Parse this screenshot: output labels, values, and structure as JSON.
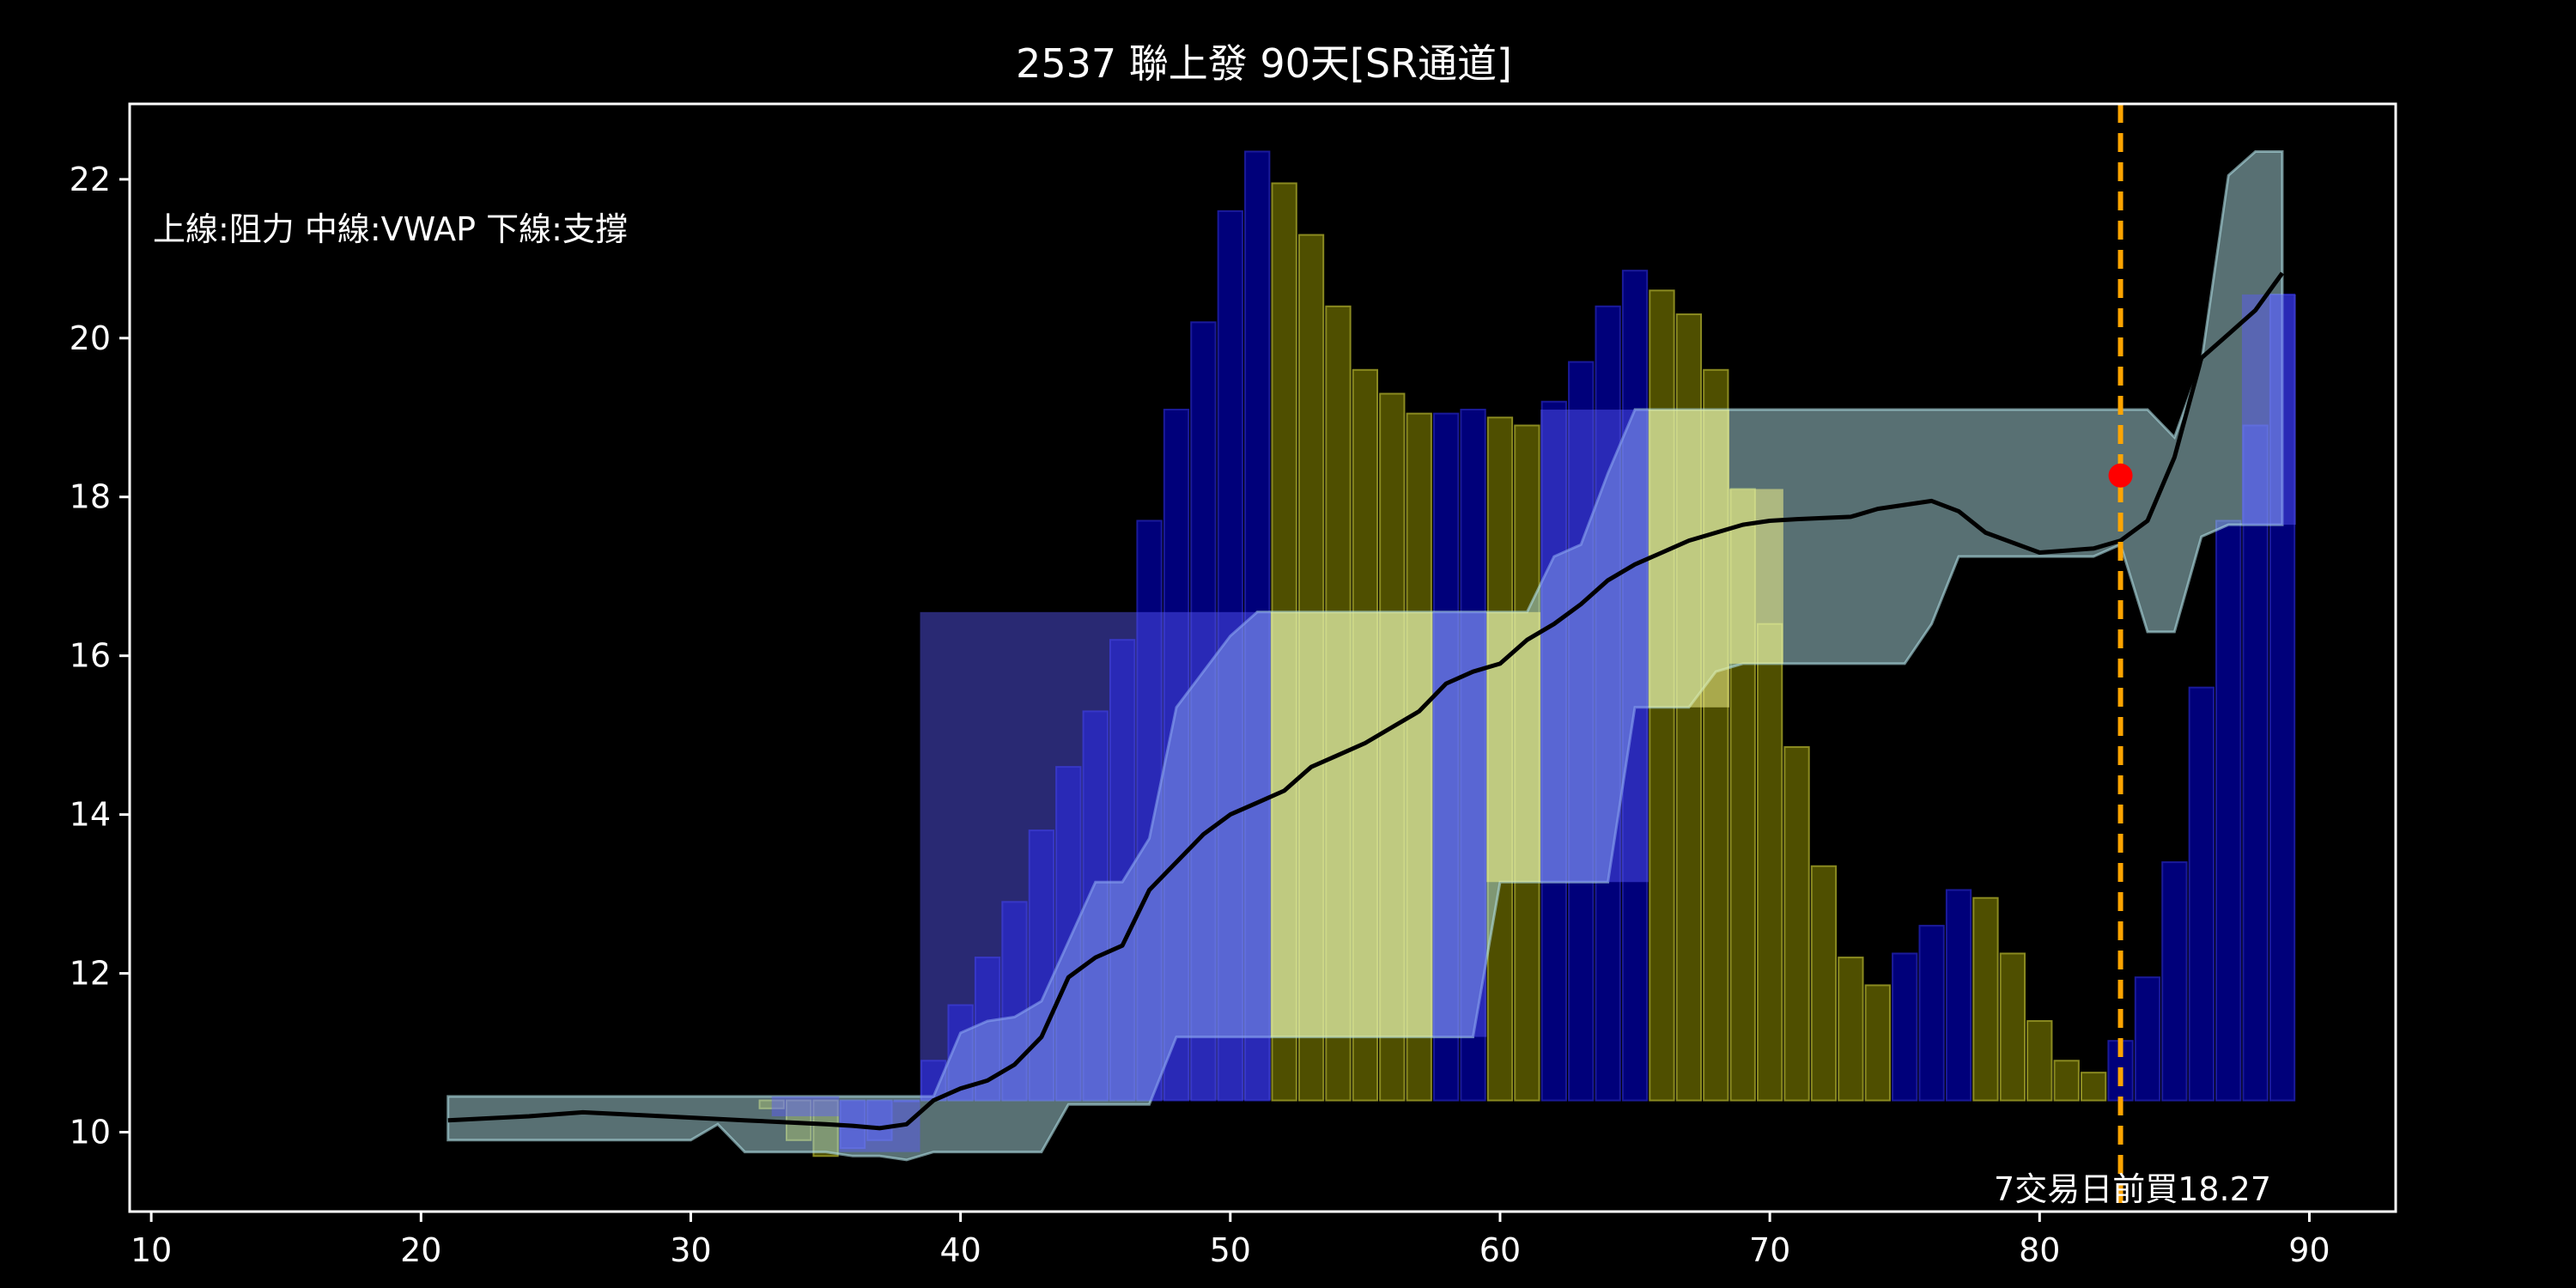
{
  "title": "2537 聯上發 90天[SR通道]",
  "note": "上線:阻力  中線:VWAP  下線:支撐",
  "annotation": "7交易日前買18.27",
  "colors": {
    "background": "#000000",
    "axes": "#ffffff",
    "up_bar": "#00007a",
    "down_bar": "#4f4f00",
    "band": "#b0e0e6",
    "vwap": "#000000",
    "buy_line": "#ffa500",
    "buy_marker": "#ff0000",
    "low_bar_band": "#5b5bff",
    "high_bar_band": "#f4f48a"
  },
  "chart_data": {
    "type": "line",
    "title": "2537 聯上發 90天[SR通道]",
    "xlabel": "",
    "ylabel": "",
    "xlim": [
      9.2,
      93.2
    ],
    "ylim": [
      9.0,
      22.95
    ],
    "xticks": [
      10,
      20,
      30,
      40,
      50,
      60,
      70,
      80,
      90
    ],
    "yticks": [
      10,
      12,
      14,
      16,
      18,
      20,
      22
    ],
    "grid": false,
    "bar_base": 10.4,
    "bars": [
      {
        "x": 33,
        "top": 10.3,
        "color": "yellow"
      },
      {
        "x": 34,
        "top": 9.9,
        "color": "yellow"
      },
      {
        "x": 35,
        "top": 9.7,
        "color": "yellow"
      },
      {
        "x": 36,
        "top": 9.8,
        "color": "blue"
      },
      {
        "x": 37,
        "top": 9.9,
        "color": "blue"
      },
      {
        "x": 38,
        "top": 10.4,
        "color": "blue"
      },
      {
        "x": 39,
        "top": 10.9,
        "color": "blue"
      },
      {
        "x": 40,
        "top": 11.6,
        "color": "blue"
      },
      {
        "x": 41,
        "top": 12.2,
        "color": "blue"
      },
      {
        "x": 42,
        "top": 12.9,
        "color": "blue"
      },
      {
        "x": 43,
        "top": 13.8,
        "color": "blue"
      },
      {
        "x": 44,
        "top": 14.6,
        "color": "blue"
      },
      {
        "x": 45,
        "top": 15.3,
        "color": "blue"
      },
      {
        "x": 46,
        "top": 16.2,
        "color": "blue"
      },
      {
        "x": 47,
        "top": 17.7,
        "color": "blue"
      },
      {
        "x": 48,
        "top": 19.1,
        "color": "blue"
      },
      {
        "x": 49,
        "top": 20.2,
        "color": "blue"
      },
      {
        "x": 50,
        "top": 21.6,
        "color": "blue"
      },
      {
        "x": 51,
        "top": 22.35,
        "color": "blue"
      },
      {
        "x": 52,
        "top": 21.95,
        "color": "yellow"
      },
      {
        "x": 53,
        "top": 21.3,
        "color": "yellow"
      },
      {
        "x": 54,
        "top": 20.4,
        "color": "yellow"
      },
      {
        "x": 55,
        "top": 19.6,
        "color": "yellow"
      },
      {
        "x": 56,
        "top": 19.3,
        "color": "yellow"
      },
      {
        "x": 57,
        "top": 19.05,
        "color": "yellow"
      },
      {
        "x": 58,
        "top": 19.05,
        "color": "blue"
      },
      {
        "x": 59,
        "top": 19.1,
        "color": "blue"
      },
      {
        "x": 60,
        "top": 19.0,
        "color": "yellow"
      },
      {
        "x": 61,
        "top": 18.9,
        "color": "yellow"
      },
      {
        "x": 62,
        "top": 19.2,
        "color": "blue"
      },
      {
        "x": 63,
        "top": 19.7,
        "color": "blue"
      },
      {
        "x": 64,
        "top": 20.4,
        "color": "blue"
      },
      {
        "x": 65,
        "top": 20.85,
        "color": "blue"
      },
      {
        "x": 66,
        "top": 20.6,
        "color": "yellow"
      },
      {
        "x": 67,
        "top": 20.3,
        "color": "yellow"
      },
      {
        "x": 68,
        "top": 19.6,
        "color": "yellow"
      },
      {
        "x": 69,
        "top": 18.1,
        "color": "yellow"
      },
      {
        "x": 70,
        "top": 16.4,
        "color": "yellow"
      },
      {
        "x": 71,
        "top": 14.85,
        "color": "yellow"
      },
      {
        "x": 72,
        "top": 13.35,
        "color": "yellow"
      },
      {
        "x": 73,
        "top": 12.2,
        "color": "yellow"
      },
      {
        "x": 74,
        "top": 11.85,
        "color": "yellow"
      },
      {
        "x": 75,
        "top": 12.25,
        "color": "blue"
      },
      {
        "x": 76,
        "top": 12.6,
        "color": "blue"
      },
      {
        "x": 77,
        "top": 13.05,
        "color": "blue"
      },
      {
        "x": 78,
        "top": 12.95,
        "color": "yellow"
      },
      {
        "x": 79,
        "top": 12.25,
        "color": "yellow"
      },
      {
        "x": 80,
        "top": 11.4,
        "color": "yellow"
      },
      {
        "x": 81,
        "top": 10.9,
        "color": "yellow"
      },
      {
        "x": 82,
        "top": 10.75,
        "color": "yellow"
      },
      {
        "x": 83,
        "top": 11.15,
        "color": "blue"
      },
      {
        "x": 84,
        "top": 11.95,
        "color": "blue"
      },
      {
        "x": 85,
        "top": 13.4,
        "color": "blue"
      },
      {
        "x": 86,
        "top": 15.6,
        "color": "blue"
      },
      {
        "x": 87,
        "top": 17.7,
        "color": "blue"
      },
      {
        "x": 88,
        "top": 18.9,
        "color": "blue"
      },
      {
        "x": 89,
        "top": 20.55,
        "color": "blue"
      }
    ],
    "highlight_bands": [
      {
        "x0": 33,
        "x1": 35.5,
        "y0": 10.2,
        "y1": 10.45,
        "color": "low"
      },
      {
        "x0": 35.5,
        "x1": 38.5,
        "y0": 9.75,
        "y1": 10.4,
        "color": "low"
      },
      {
        "x0": 38.5,
        "x1": 51.5,
        "y0": 10.4,
        "y1": 16.55,
        "color": "low"
      },
      {
        "x0": 51.5,
        "x1": 57.5,
        "y0": 11.2,
        "y1": 16.55,
        "color": "high"
      },
      {
        "x0": 57.5,
        "x1": 59.5,
        "y0": 11.2,
        "y1": 16.55,
        "color": "low"
      },
      {
        "x0": 59.5,
        "x1": 61.5,
        "y0": 13.15,
        "y1": 16.55,
        "color": "high"
      },
      {
        "x0": 61.5,
        "x1": 65.5,
        "y0": 13.15,
        "y1": 19.1,
        "color": "low"
      },
      {
        "x0": 65.5,
        "x1": 68.5,
        "y0": 15.35,
        "y1": 19.1,
        "color": "high"
      },
      {
        "x0": 68.5,
        "x1": 70.5,
        "y0": 15.9,
        "y1": 18.1,
        "color": "high"
      },
      {
        "x0": 87.5,
        "x1": 89.5,
        "y0": 17.65,
        "y1": 20.55,
        "color": "low"
      }
    ],
    "channel": {
      "x": [
        21,
        29,
        30,
        31,
        32,
        33,
        34,
        35,
        36,
        37,
        38,
        39,
        40,
        41,
        42,
        43,
        44,
        45,
        46,
        47,
        48,
        49,
        50,
        51,
        52,
        57,
        58,
        59,
        60,
        61,
        62,
        63,
        64,
        65,
        66,
        67,
        68,
        69,
        70,
        75,
        76,
        77,
        82,
        83,
        84,
        85,
        86,
        87,
        88,
        89
      ],
      "upper": [
        10.45,
        10.45,
        10.45,
        10.45,
        10.45,
        10.45,
        10.45,
        10.45,
        10.45,
        10.45,
        10.45,
        10.45,
        11.25,
        11.4,
        11.45,
        11.65,
        12.4,
        13.15,
        13.15,
        13.7,
        15.35,
        15.8,
        16.25,
        16.55,
        16.55,
        16.55,
        16.55,
        16.55,
        16.55,
        16.55,
        17.25,
        17.4,
        18.3,
        19.1,
        19.1,
        19.1,
        19.1,
        19.1,
        19.1,
        19.1,
        19.1,
        19.1,
        19.1,
        19.1,
        19.1,
        18.75,
        19.7,
        22.05,
        22.35,
        22.35
      ],
      "lower": [
        9.9,
        9.9,
        9.9,
        10.1,
        9.75,
        9.75,
        9.75,
        9.75,
        9.7,
        9.7,
        9.65,
        9.75,
        9.75,
        9.75,
        9.75,
        9.75,
        10.35,
        10.35,
        10.35,
        10.35,
        11.2,
        11.2,
        11.2,
        11.2,
        11.2,
        11.2,
        11.2,
        11.2,
        13.15,
        13.15,
        13.15,
        13.15,
        13.15,
        15.35,
        15.35,
        15.35,
        15.8,
        15.9,
        15.9,
        15.9,
        16.4,
        17.25,
        17.25,
        17.4,
        16.3,
        16.3,
        17.5,
        17.65,
        17.65,
        17.65
      ]
    },
    "vwap": {
      "x": [
        21,
        24,
        26,
        29,
        32,
        35,
        36,
        37,
        38,
        39,
        40,
        41,
        42,
        43,
        44,
        45,
        46,
        47,
        48,
        49,
        50,
        51,
        52,
        53,
        54,
        55,
        56,
        57,
        58,
        59,
        60,
        61,
        62,
        63,
        64,
        65,
        66,
        67,
        68,
        69,
        70,
        71,
        73,
        74,
        75,
        76,
        77,
        78,
        80,
        82,
        83,
        84,
        85,
        86,
        87,
        88,
        89
      ],
      "y": [
        10.15,
        10.2,
        10.25,
        10.2,
        10.15,
        10.1,
        10.08,
        10.05,
        10.1,
        10.4,
        10.55,
        10.65,
        10.85,
        11.2,
        11.95,
        12.2,
        12.35,
        13.05,
        13.4,
        13.75,
        14.0,
        14.15,
        14.3,
        14.6,
        14.75,
        14.9,
        15.1,
        15.3,
        15.65,
        15.8,
        15.9,
        16.2,
        16.4,
        16.65,
        16.95,
        17.15,
        17.3,
        17.45,
        17.55,
        17.65,
        17.7,
        17.72,
        17.75,
        17.85,
        17.9,
        17.95,
        17.82,
        17.55,
        17.3,
        17.35,
        17.45,
        17.7,
        18.5,
        19.75,
        20.05,
        20.35,
        20.82
      ]
    },
    "buy_signal": {
      "x": 83,
      "y": 18.27
    }
  }
}
